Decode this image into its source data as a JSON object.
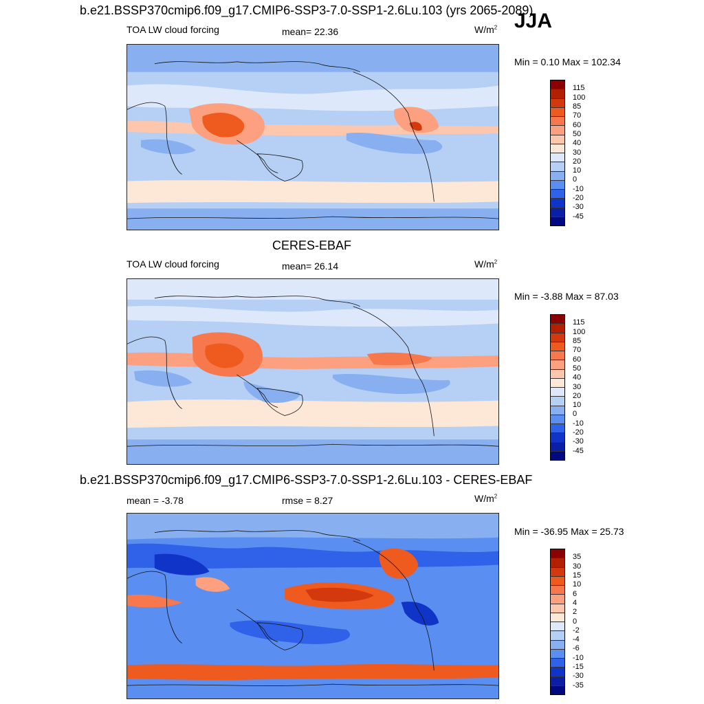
{
  "header": {
    "main_title": "b.e21.BSSP370cmip6.f09_g17.CMIP6-SSP3-7.0-SSP1-2.6Lu.103 (yrs 2065-2089)",
    "season": "JJA"
  },
  "panels": [
    {
      "id": "model",
      "title": "",
      "variable": "TOA LW cloud forcing",
      "stat1": "mean=  22.36",
      "stat2": "",
      "units": "W/m",
      "units_exp": "2",
      "minmax": "Min =   0.10 Max = 102.34",
      "colorbar_labels": [
        "115",
        "100",
        "85",
        "70",
        "60",
        "50",
        "40",
        "30",
        "20",
        "10",
        "0",
        "-10",
        "-20",
        "-30",
        "-45"
      ]
    },
    {
      "id": "obs",
      "title": "CERES-EBAF",
      "variable": "TOA LW cloud forcing",
      "stat1": "mean=  26.14",
      "stat2": "",
      "units": "W/m",
      "units_exp": "2",
      "minmax": "Min =  -3.88 Max =  87.03",
      "colorbar_labels": [
        "115",
        "100",
        "85",
        "70",
        "60",
        "50",
        "40",
        "30",
        "20",
        "10",
        "0",
        "-10",
        "-20",
        "-30",
        "-45"
      ]
    },
    {
      "id": "diff",
      "title": "b.e21.BSSP370cmip6.f09_g17.CMIP6-SSP3-7.0-SSP1-2.6Lu.103 - CERES-EBAF",
      "variable": "",
      "stat1": "mean =  -3.78",
      "stat2": "rmse =   8.27",
      "units": "W/m",
      "units_exp": "2",
      "minmax": "Min = -36.95 Max =  25.73",
      "colorbar_labels": [
        "35",
        "30",
        "15",
        "10",
        "6",
        "4",
        "2",
        "0",
        "-2",
        "-4",
        "-6",
        "-10",
        "-15",
        "-30",
        "-35"
      ]
    }
  ],
  "colors": {
    "full_colorbar": [
      "#8b0000",
      "#b22000",
      "#d4380d",
      "#ef5a1e",
      "#f7784d",
      "#fca080",
      "#fdc7ad",
      "#fde8d8",
      "#dde9fa",
      "#b5cff5",
      "#88b0f0",
      "#5a8ef0",
      "#2f62e8",
      "#1034c8",
      "#0a1ea6",
      "#000a80"
    ],
    "diff_colorbar": [
      "#8b0000",
      "#b22000",
      "#d4380d",
      "#ef5a1e",
      "#f7784d",
      "#fca080",
      "#fdc7ad",
      "#fde8d8",
      "#dde9fa",
      "#b5cff5",
      "#88b0f0",
      "#5a8ef0",
      "#2f62e8",
      "#1034c8",
      "#0a1ea6",
      "#000a80"
    ]
  }
}
